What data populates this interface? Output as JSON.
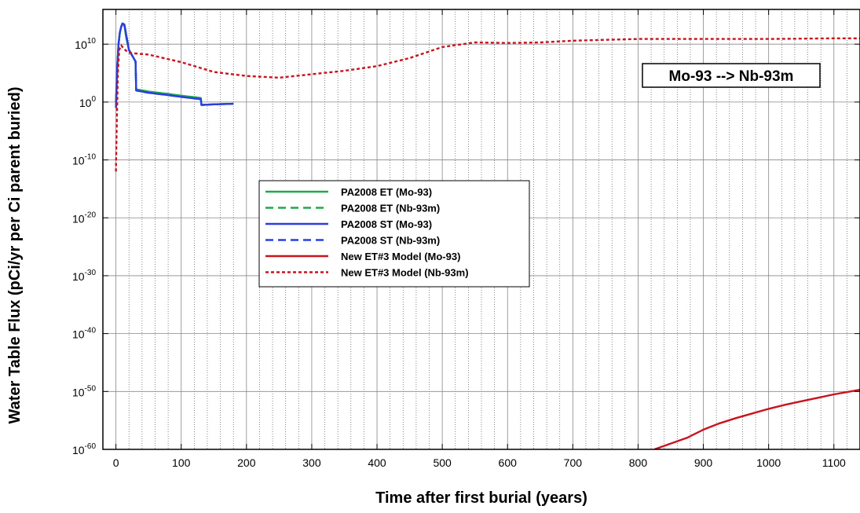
{
  "chart_data": {
    "type": "line",
    "title": "",
    "xlabel": "Time after first burial (years)",
    "ylabel": "Water Table Flux (pCi/yr per Ci parent buried)",
    "xlim": [
      -20,
      1140
    ],
    "ylim_log10": [
      -60,
      16
    ],
    "y_scale": "log",
    "x_ticks": [
      0,
      100,
      200,
      300,
      400,
      500,
      600,
      700,
      800,
      900,
      1000,
      1100
    ],
    "y_ticks": [
      {
        "base": "10",
        "exp": "10"
      },
      {
        "base": "10",
        "exp": "0"
      },
      {
        "base": "10",
        "exp": "-10"
      },
      {
        "base": "10",
        "exp": "-20"
      },
      {
        "base": "10",
        "exp": "-30"
      },
      {
        "base": "10",
        "exp": "-40"
      },
      {
        "base": "10",
        "exp": "-50"
      },
      {
        "base": "10",
        "exp": "-60"
      }
    ],
    "y_tick_values_log10": [
      10,
      0,
      -10,
      -20,
      -30,
      -40,
      -50,
      -60
    ],
    "grid": true,
    "legend_position": "center-left",
    "annotation": "Mo-93 --> Nb-93m",
    "series": [
      {
        "name": "PA2008 ET (Mo-93)",
        "color": "#1faa4a",
        "dash": "solid",
        "x": [
          0,
          2,
          4,
          6,
          8,
          10,
          13,
          16,
          20,
          25,
          30,
          31,
          50,
          80,
          100,
          130,
          131,
          150,
          180
        ],
        "log10_y": [
          0,
          6,
          10,
          12,
          13,
          13.5,
          13.2,
          11,
          9,
          8,
          7,
          2.2,
          1.8,
          1.4,
          1.1,
          0.7,
          -0.5,
          -0.4,
          -0.3
        ]
      },
      {
        "name": "PA2008 ET (Nb-93m)",
        "color": "#1faa4a",
        "dash": "dashed",
        "x": [
          0,
          2,
          4,
          6,
          8,
          10,
          13,
          16,
          20,
          25,
          30,
          31,
          50,
          80,
          100,
          130,
          131,
          150,
          180
        ],
        "log10_y": [
          0,
          6,
          10,
          12,
          13,
          13.5,
          13.2,
          11,
          9,
          8,
          7,
          2.2,
          1.8,
          1.4,
          1.1,
          0.7,
          -0.5,
          -0.4,
          -0.3
        ]
      },
      {
        "name": "PA2008 ST (Mo-93)",
        "color": "#2a3fe0",
        "dash": "solid",
        "x": [
          0,
          2,
          4,
          6,
          8,
          10,
          13,
          16,
          20,
          25,
          30,
          31,
          50,
          80,
          100,
          130,
          131,
          150,
          180
        ],
        "log10_y": [
          -1,
          6,
          10,
          12,
          13,
          13.6,
          13.4,
          11.5,
          9,
          8,
          7,
          2,
          1.6,
          1.2,
          0.9,
          0.5,
          -0.5,
          -0.4,
          -0.3
        ]
      },
      {
        "name": "PA2008 ST (Nb-93m)",
        "color": "#2a3fe0",
        "dash": "dashed",
        "x": [
          0,
          2,
          4,
          6,
          8,
          10,
          13,
          16,
          20,
          25,
          30,
          31,
          50,
          80,
          100,
          130,
          131,
          150,
          180
        ],
        "log10_y": [
          -1,
          6,
          10,
          12,
          13,
          13.6,
          13.4,
          11.5,
          9,
          8,
          7,
          2,
          1.6,
          1.2,
          0.9,
          0.5,
          -0.5,
          -0.4,
          -0.3
        ]
      },
      {
        "name": "New ET#3 Model (Mo-93)",
        "color": "#c8141e",
        "dash": "solid",
        "x": [
          825,
          850,
          875,
          900,
          925,
          950,
          975,
          1000,
          1025,
          1050,
          1075,
          1100,
          1140
        ],
        "log10_y": [
          -60,
          -59,
          -58,
          -56.6,
          -55.5,
          -54.6,
          -53.8,
          -53,
          -52.3,
          -51.7,
          -51.1,
          -50.5,
          -49.7
        ]
      },
      {
        "name": "New ET#3 Model (Nb-93m)",
        "color": "#c8141e",
        "dash": "dotted",
        "x": [
          0,
          1,
          3,
          5,
          8,
          12,
          20,
          50,
          100,
          150,
          200,
          250,
          300,
          350,
          400,
          450,
          500,
          550,
          600,
          650,
          700,
          800,
          900,
          1000,
          1100,
          1140
        ],
        "log10_y": [
          -12,
          -5,
          5,
          9,
          9.8,
          9.2,
          8.5,
          8.2,
          6.9,
          5.2,
          4.5,
          4.2,
          4.8,
          5.4,
          6.2,
          7.6,
          9.5,
          10.3,
          10.2,
          10.3,
          10.6,
          10.9,
          10.9,
          10.9,
          11,
          11
        ]
      }
    ]
  }
}
